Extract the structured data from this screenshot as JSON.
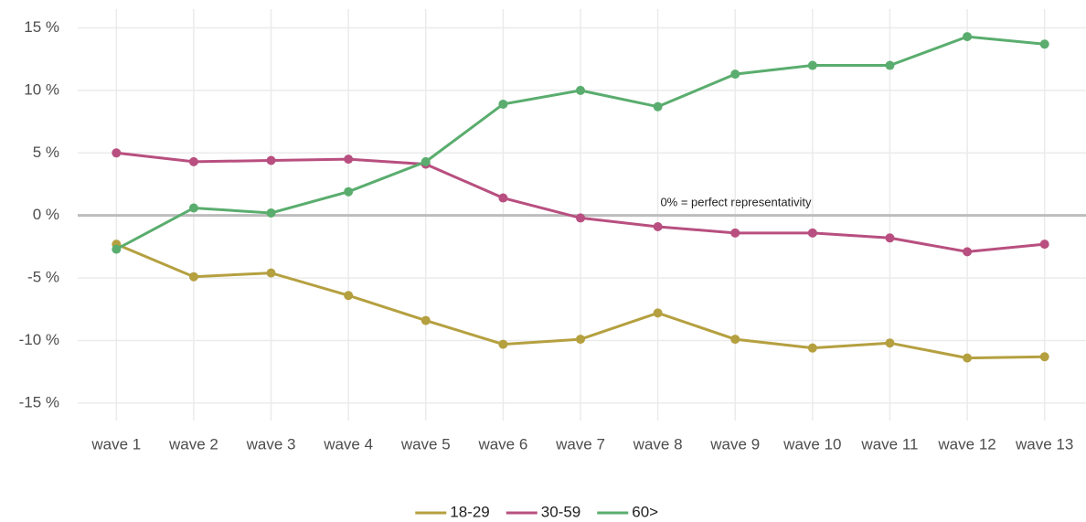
{
  "chart_data": {
    "type": "line",
    "categories": [
      "wave 1",
      "wave 2",
      "wave 3",
      "wave 4",
      "wave 5",
      "wave 6",
      "wave 7",
      "wave 8",
      "wave 9",
      "wave 10",
      "wave 11",
      "wave 12",
      "wave 13"
    ],
    "series": [
      {
        "name": "18-29",
        "color": "#b5a040",
        "values": [
          -2.3,
          -4.9,
          -4.6,
          -6.4,
          -8.4,
          -10.3,
          -9.9,
          -7.8,
          -9.9,
          -10.6,
          -10.2,
          -11.4,
          -11.3
        ]
      },
      {
        "name": "30-59",
        "color": "#b84f80",
        "values": [
          5.0,
          4.3,
          4.4,
          4.5,
          4.1,
          1.4,
          -0.2,
          -0.9,
          -1.4,
          -1.4,
          -1.8,
          -2.9,
          -2.3
        ]
      },
      {
        "name": "60>",
        "color": "#5aad6e",
        "values": [
          -2.7,
          0.6,
          0.2,
          1.9,
          4.3,
          8.9,
          10.0,
          8.7,
          11.3,
          12.0,
          12.0,
          14.3,
          13.7
        ]
      }
    ],
    "ylim": [
      -16.4,
      16.5
    ],
    "yticks": [
      {
        "value": -15,
        "label": "-15 %"
      },
      {
        "value": -10,
        "label": "-10 %"
      },
      {
        "value": -5,
        "label": "-5 %"
      },
      {
        "value": 0,
        "label": "0 %"
      },
      {
        "value": 5,
        "label": "5 %"
      },
      {
        "value": 10,
        "label": "10 %"
      },
      {
        "value": 15,
        "label": "15 %"
      }
    ],
    "annotation": "0% = perfect representativity",
    "grid": true,
    "legend": "bottom"
  }
}
